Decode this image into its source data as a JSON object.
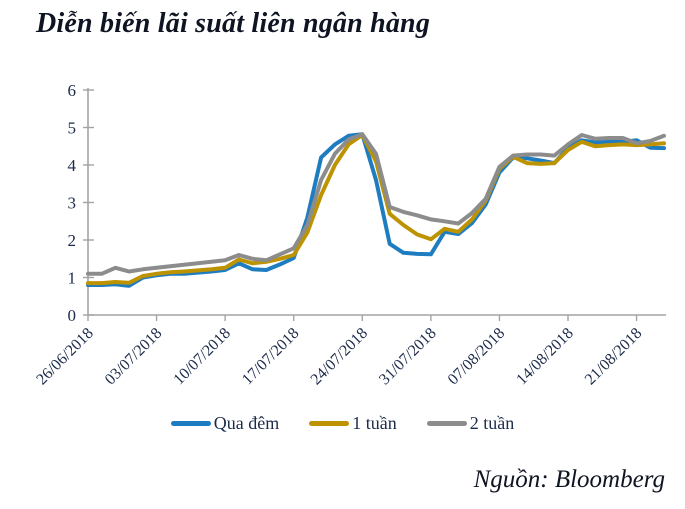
{
  "title": "Diễn biến lãi suất liên ngân hàng",
  "source": "Nguồn: Bloomberg",
  "title_color": "#0E1422",
  "chart_data": {
    "type": "line",
    "title": "Diễn biến lãi suất liên ngân hàng",
    "source_note": "Nguồn: Bloomberg",
    "x_tick_labels": [
      "26/06/2018",
      "03/07/2018",
      "10/07/2018",
      "17/07/2018",
      "24/07/2018",
      "31/07/2018",
      "07/08/2018",
      "14/08/2018",
      "21/08/2018"
    ],
    "points_per_tick": 5,
    "ylim": [
      0,
      6
    ],
    "y_ticks": [
      0,
      1,
      2,
      3,
      4,
      5,
      6
    ],
    "grid": false,
    "legend_position": "bottom",
    "axis_color": "#A3A3A3",
    "text_color": "#1C2B4A",
    "series": [
      {
        "name": "Qua đêm",
        "color": "#1E7CC1",
        "values": [
          0.8,
          0.8,
          0.82,
          0.78,
          1.0,
          1.06,
          1.1,
          1.1,
          1.13,
          1.16,
          1.2,
          1.38,
          1.22,
          1.2,
          1.35,
          1.52,
          2.6,
          4.2,
          4.55,
          4.78,
          4.82,
          3.6,
          1.9,
          1.66,
          1.63,
          1.62,
          2.22,
          2.16,
          2.45,
          2.95,
          3.8,
          4.2,
          4.18,
          4.12,
          4.05,
          4.45,
          4.66,
          4.6,
          4.62,
          4.62,
          4.66,
          4.46,
          4.45
        ]
      },
      {
        "name": "1 tuần",
        "color": "#BD9302",
        "values": [
          0.85,
          0.85,
          0.88,
          0.86,
          1.04,
          1.1,
          1.14,
          1.16,
          1.19,
          1.22,
          1.26,
          1.48,
          1.38,
          1.42,
          1.5,
          1.6,
          2.2,
          3.2,
          4.0,
          4.55,
          4.8,
          4.1,
          2.7,
          2.4,
          2.15,
          2.02,
          2.3,
          2.22,
          2.55,
          3.05,
          3.9,
          4.22,
          4.05,
          4.03,
          4.05,
          4.4,
          4.62,
          4.5,
          4.53,
          4.55,
          4.53,
          4.55,
          4.58
        ]
      },
      {
        "name": "2 tuần",
        "color": "#8C8C8C",
        "values": [
          1.1,
          1.1,
          1.26,
          1.16,
          1.22,
          1.26,
          1.3,
          1.34,
          1.38,
          1.42,
          1.46,
          1.6,
          1.5,
          1.46,
          1.62,
          1.78,
          2.4,
          3.6,
          4.3,
          4.68,
          4.82,
          4.3,
          2.88,
          2.75,
          2.66,
          2.55,
          2.5,
          2.44,
          2.72,
          3.1,
          3.95,
          4.25,
          4.28,
          4.28,
          4.25,
          4.55,
          4.8,
          4.7,
          4.72,
          4.72,
          4.58,
          4.64,
          4.78
        ]
      }
    ]
  }
}
